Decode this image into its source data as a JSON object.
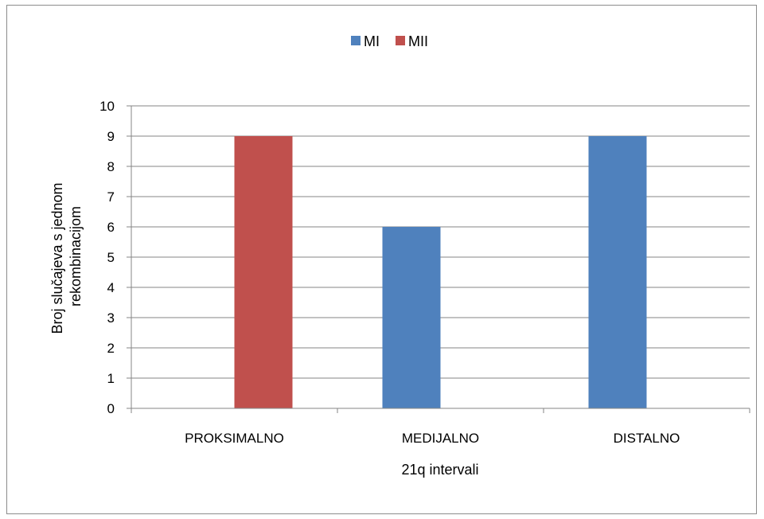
{
  "chart_data": {
    "type": "bar",
    "categories": [
      "PROKSIMALNO",
      "MEDIJALNO",
      "DISTALNO"
    ],
    "series": [
      {
        "name": "MI",
        "color": "#4f81bd",
        "values": [
          0,
          6,
          9
        ]
      },
      {
        "name": "MII",
        "color": "#c0504d",
        "values": [
          9,
          0,
          0
        ]
      }
    ],
    "xlabel": "21q intervali",
    "ylabel_lines": [
      "Broj slučajeva s jednom",
      "rekombinacijom"
    ],
    "ylim": [
      0,
      10
    ],
    "yticks": [
      "0",
      "1",
      "2",
      "3",
      "4",
      "5",
      "6",
      "7",
      "8",
      "9",
      "10"
    ],
    "grid": true,
    "legend_position": "top-center"
  }
}
